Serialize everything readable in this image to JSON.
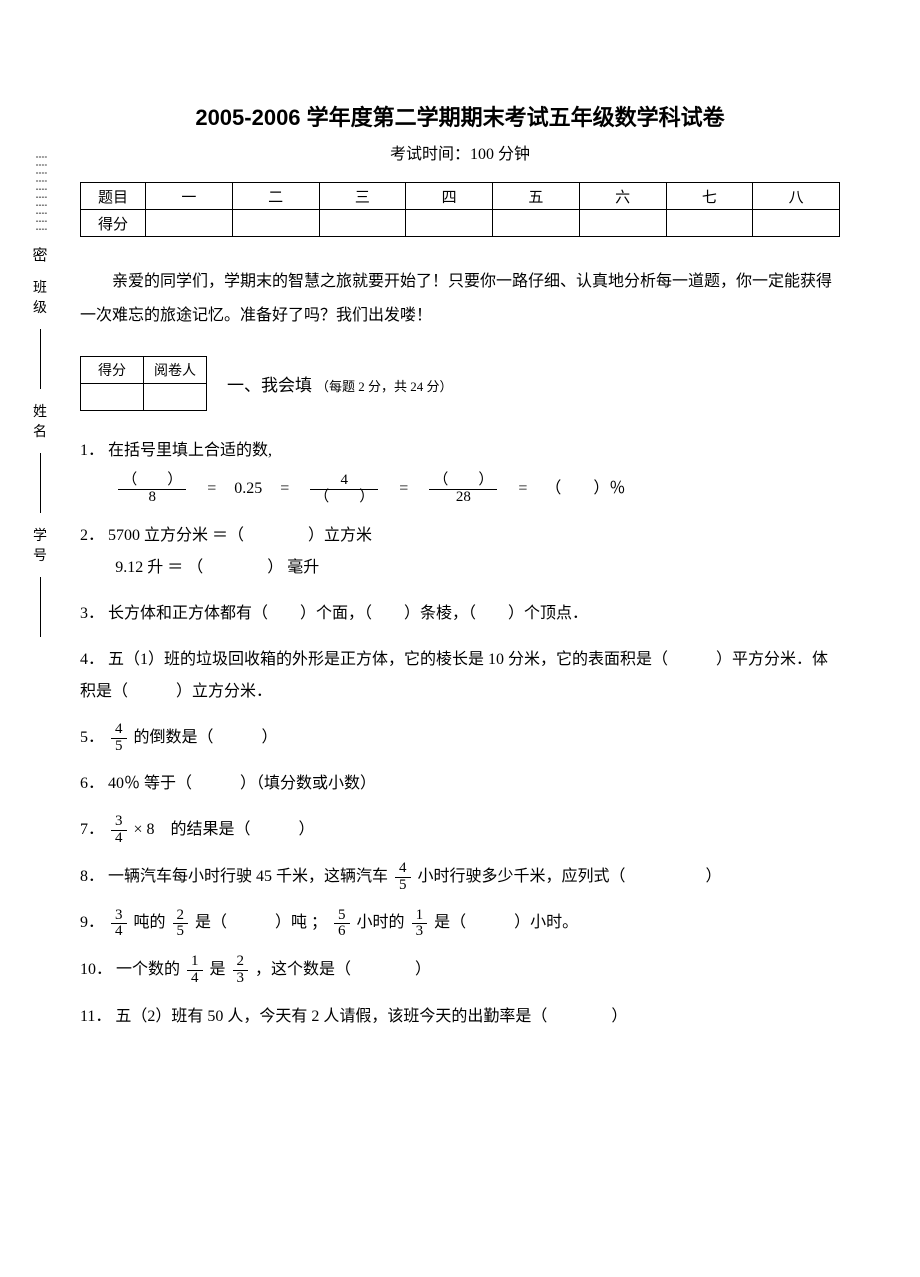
{
  "margin": {
    "mi": "密",
    "banji": "班级",
    "xingming": "姓名",
    "xuehao": "学号"
  },
  "header": {
    "title": "2005-2006 学年度第二学期期末考试五年级数学科试卷",
    "subtitle": "考试时间：100 分钟"
  },
  "score_table": {
    "row1_label": "题目",
    "row2_label": "得分",
    "cols": [
      "一",
      "二",
      "三",
      "四",
      "五",
      "六",
      "七",
      "八"
    ]
  },
  "intro": "亲爱的同学们，学期末的智慧之旅就要开始了！只要你一路仔细、认真地分析每一道题，你一定能获得一次难忘的旅途记忆。准备好了吗？我们出发喽！",
  "small_table": {
    "c1": "得分",
    "c2": "阅卷人"
  },
  "section1": {
    "title": "一、我会填",
    "note": "（每题 2 分，共 24 分）"
  },
  "q1": {
    "num": "1．",
    "text": "在括号里填上合适的数,",
    "eq_025": "0.25",
    "den8": "8",
    "num4": "4",
    "den28": "28",
    "pct": "％",
    "blank": "（　　）"
  },
  "q2": {
    "num": "2．",
    "l1": "5700 立方分米 ＝（　　　　）立方米",
    "l2": "9.12 升 ＝ （　　　　） 毫升"
  },
  "q3": {
    "num": "3．",
    "text": "长方体和正方体都有（　　）个面，（　　）条棱，（　　）个顶点．"
  },
  "q4": {
    "num": "4．",
    "text": "五（1）班的垃圾回收箱的外形是正方体，它的棱长是 10 分米，它的表面积是（　　　）平方分米．体积是（　　　）立方分米．"
  },
  "q5": {
    "num": "5．",
    "frac_n": "4",
    "frac_d": "5",
    "tail": "的倒数是（　　　）"
  },
  "q6": {
    "num": "6．",
    "text": "40％ 等于（　　　）（填分数或小数）"
  },
  "q7": {
    "num": "7．",
    "frac_n": "3",
    "frac_d": "4",
    "mid": " × 8　的结果是（　　　）"
  },
  "q8": {
    "num": "8．",
    "pre": "一辆汽车每小时行驶 45 千米，这辆汽车",
    "frac_n": "4",
    "frac_d": "5",
    "post": "小时行驶多少千米，应列式（　　　　　）"
  },
  "q9": {
    "num": "9．",
    "f1n": "3",
    "f1d": "4",
    "mid1": "吨的",
    "f2n": "2",
    "f2d": "5",
    "mid2": "是（　　　）吨 ；",
    "f3n": "5",
    "f3d": "6",
    "mid3": "小时的",
    "f4n": "1",
    "f4d": "3",
    "mid4": "是（　　　）小时。"
  },
  "q10": {
    "num": "10．",
    "pre": "一个数的",
    "f1n": "1",
    "f1d": "4",
    "mid": "是",
    "f2n": "2",
    "f2d": "3",
    "post": "，这个数是（　　　　）"
  },
  "q11": {
    "num": "11．",
    "text": "五（2）班有 50 人，今天有 2 人请假，该班今天的出勤率是（　　　　）"
  }
}
